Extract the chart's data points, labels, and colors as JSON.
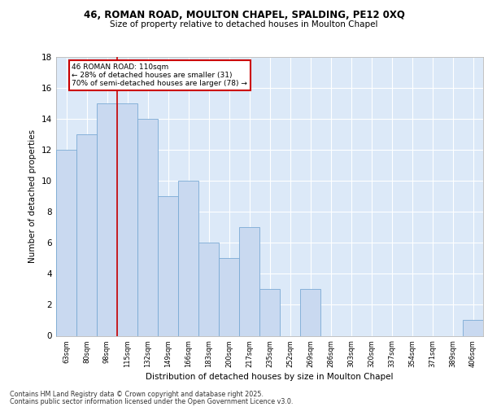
{
  "title1": "46, ROMAN ROAD, MOULTON CHAPEL, SPALDING, PE12 0XQ",
  "title2": "Size of property relative to detached houses in Moulton Chapel",
  "xlabel": "Distribution of detached houses by size in Moulton Chapel",
  "ylabel": "Number of detached properties",
  "categories": [
    "63sqm",
    "80sqm",
    "98sqm",
    "115sqm",
    "132sqm",
    "149sqm",
    "166sqm",
    "183sqm",
    "200sqm",
    "217sqm",
    "235sqm",
    "252sqm",
    "269sqm",
    "286sqm",
    "303sqm",
    "320sqm",
    "337sqm",
    "354sqm",
    "371sqm",
    "389sqm",
    "406sqm"
  ],
  "values": [
    12,
    13,
    15,
    15,
    14,
    9,
    10,
    6,
    5,
    7,
    3,
    0,
    3,
    0,
    0,
    0,
    0,
    0,
    0,
    0,
    1
  ],
  "bar_color": "#c9d9f0",
  "bar_edge_color": "#7aaad4",
  "background_color": "#dce9f8",
  "grid_color": "#ffffff",
  "annotation_line1": "46 ROMAN ROAD: 110sqm",
  "annotation_line2": "← 28% of detached houses are smaller (31)",
  "annotation_line3": "70% of semi-detached houses are larger (78) →",
  "annotation_box_edge_color": "#cc0000",
  "redline_index": 2.5,
  "ylim": [
    0,
    18
  ],
  "yticks": [
    0,
    2,
    4,
    6,
    8,
    10,
    12,
    14,
    16,
    18
  ],
  "footer1": "Contains HM Land Registry data © Crown copyright and database right 2025.",
  "footer2": "Contains public sector information licensed under the Open Government Licence v3.0."
}
